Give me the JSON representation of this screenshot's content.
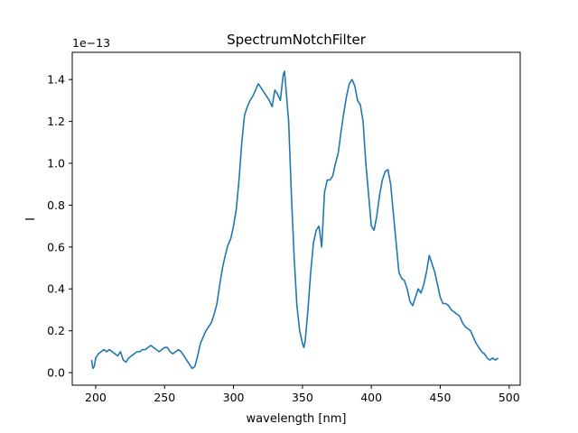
{
  "chart_data": {
    "type": "line",
    "title": "SpectrumNotchFilter",
    "xlabel": "wavelength [nm]",
    "ylabel": "I",
    "y_offset_label": "1e−13",
    "xlim": [
      183,
      508
    ],
    "ylim": [
      -0.06,
      1.53
    ],
    "xticks": [
      200,
      250,
      300,
      350,
      400,
      450,
      500
    ],
    "yticks": [
      0.0,
      0.2,
      0.4,
      0.6,
      0.8,
      1.0,
      1.2,
      1.4
    ],
    "ytick_labels": [
      "0.0",
      "0.2",
      "0.4",
      "0.6",
      "0.8",
      "1.0",
      "1.2",
      "1.4"
    ],
    "grid": false,
    "line_color": "#1f77b4",
    "series": [
      {
        "x": [
          197,
          198,
          199,
          200,
          202,
          204,
          206,
          208,
          210,
          212,
          214,
          216,
          218,
          220,
          222,
          224,
          226,
          228,
          230,
          232,
          234,
          236,
          238,
          240,
          242,
          244,
          246,
          248,
          250,
          252,
          254,
          256,
          258,
          260,
          262,
          264,
          266,
          268,
          270,
          272,
          274,
          276,
          278,
          280,
          282,
          284,
          286,
          288,
          290,
          292,
          294,
          296,
          298,
          300,
          302,
          304,
          306,
          308,
          310,
          312,
          314,
          316,
          318,
          320,
          322,
          324,
          326,
          328,
          330,
          332,
          334,
          336,
          337,
          338,
          340,
          342,
          344,
          346,
          348,
          350,
          351,
          352,
          354,
          356,
          358,
          360,
          362,
          364,
          366,
          368,
          370,
          372,
          374,
          376,
          378,
          380,
          382,
          384,
          386,
          388,
          390,
          392,
          394,
          396,
          398,
          400,
          402,
          404,
          406,
          408,
          410,
          412,
          414,
          416,
          418,
          420,
          422,
          424,
          426,
          428,
          430,
          432,
          434,
          436,
          438,
          440,
          442,
          444,
          446,
          448,
          450,
          452,
          454,
          456,
          458,
          460,
          462,
          464,
          466,
          468,
          470,
          472,
          474,
          476,
          478,
          480,
          482,
          484,
          486,
          488,
          490,
          492
        ],
        "y": [
          0.06,
          0.02,
          0.03,
          0.07,
          0.09,
          0.1,
          0.11,
          0.1,
          0.11,
          0.1,
          0.09,
          0.08,
          0.1,
          0.06,
          0.05,
          0.07,
          0.08,
          0.09,
          0.1,
          0.1,
          0.11,
          0.11,
          0.12,
          0.13,
          0.12,
          0.11,
          0.1,
          0.11,
          0.12,
          0.12,
          0.1,
          0.09,
          0.1,
          0.11,
          0.1,
          0.08,
          0.06,
          0.04,
          0.02,
          0.03,
          0.08,
          0.14,
          0.17,
          0.2,
          0.22,
          0.24,
          0.28,
          0.33,
          0.42,
          0.5,
          0.56,
          0.61,
          0.64,
          0.7,
          0.78,
          0.92,
          1.1,
          1.23,
          1.27,
          1.3,
          1.32,
          1.35,
          1.38,
          1.36,
          1.34,
          1.32,
          1.3,
          1.27,
          1.35,
          1.33,
          1.3,
          1.42,
          1.44,
          1.36,
          1.2,
          0.85,
          0.55,
          0.32,
          0.2,
          0.14,
          0.12,
          0.15,
          0.3,
          0.48,
          0.62,
          0.68,
          0.7,
          0.6,
          0.86,
          0.92,
          0.92,
          0.94,
          1.0,
          1.05,
          1.15,
          1.24,
          1.32,
          1.38,
          1.4,
          1.37,
          1.3,
          1.28,
          1.2,
          1.0,
          0.85,
          0.7,
          0.68,
          0.75,
          0.85,
          0.92,
          0.96,
          0.97,
          0.9,
          0.76,
          0.62,
          0.48,
          0.45,
          0.44,
          0.4,
          0.34,
          0.32,
          0.36,
          0.4,
          0.38,
          0.42,
          0.48,
          0.56,
          0.52,
          0.48,
          0.42,
          0.36,
          0.33,
          0.33,
          0.32,
          0.3,
          0.29,
          0.28,
          0.27,
          0.24,
          0.22,
          0.21,
          0.2,
          0.17,
          0.14,
          0.12,
          0.1,
          0.09,
          0.07,
          0.06,
          0.07,
          0.06,
          0.07
        ]
      }
    ]
  }
}
